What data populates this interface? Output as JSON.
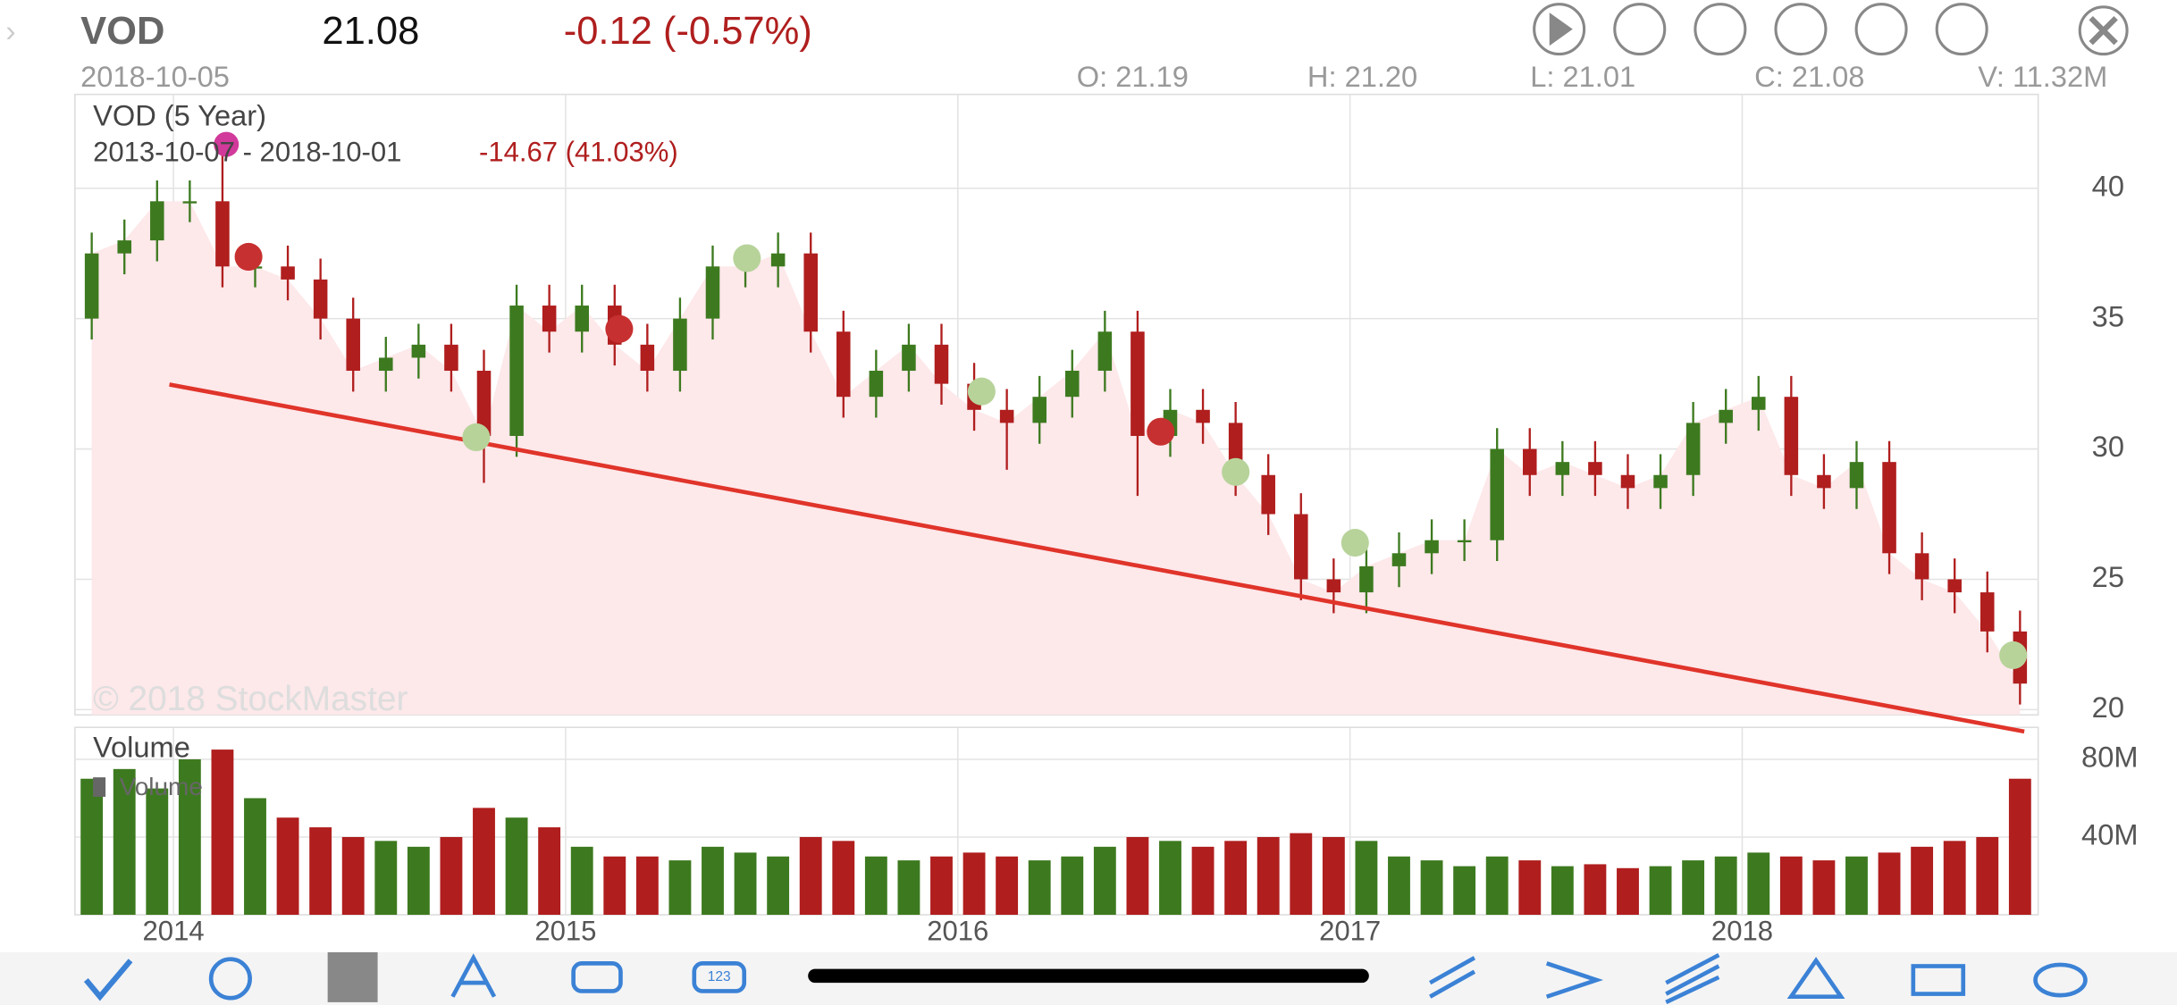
{
  "header": {
    "symbol": "VOD",
    "price": "21.08",
    "change": "-0.12 (-0.57%)",
    "date": "2018-10-05",
    "open": "O: 21.19",
    "high": "H: 21.20",
    "low": "L: 21.01",
    "close": "C: 21.08",
    "volume": "V: 11.32M"
  },
  "chart_data": {
    "type": "candlestick",
    "title": "VOD (5 Year)",
    "subtitle": "2013-10-07 - 2018-10-01",
    "subtitle_change": "-14.67 (41.03%)",
    "watermark": "© 2018 StockMaster",
    "categories": [
      null,
      null,
      null,
      "2014",
      null,
      null,
      null,
      null,
      null,
      null,
      null,
      null,
      null,
      null,
      null,
      "2015",
      null,
      null,
      null,
      null,
      null,
      null,
      null,
      null,
      null,
      null,
      null,
      "2016",
      null,
      null,
      null,
      null,
      null,
      null,
      null,
      null,
      null,
      null,
      null,
      "2017",
      null,
      null,
      null,
      null,
      null,
      null,
      null,
      null,
      null,
      null,
      null,
      "2018",
      null,
      null,
      null,
      null,
      null,
      null,
      null,
      null
    ],
    "open": [
      35,
      37.5,
      38,
      39.5,
      39.5,
      37,
      37,
      36.5,
      35,
      33,
      33.5,
      34,
      33,
      30.5,
      35.5,
      34.5,
      35.5,
      34,
      33,
      35,
      37,
      37,
      37.5,
      34.5,
      32,
      33,
      34,
      32.5,
      31.5,
      31,
      32,
      33,
      34.5,
      30.5,
      31.5,
      31,
      29,
      27.5,
      25,
      24.5,
      25.5,
      26,
      26.5,
      26.5,
      30,
      29,
      29.5,
      29,
      28.5,
      29,
      31,
      31.5,
      32,
      29,
      28.5,
      29.5,
      26,
      25,
      24.5,
      23
    ],
    "high": [
      38.3,
      38.8,
      40.3,
      40.3,
      41.5,
      37.8,
      37.8,
      37.3,
      35.8,
      34.3,
      34.8,
      34.8,
      33.8,
      36.3,
      36.3,
      36.3,
      36.3,
      34.8,
      35.8,
      37.8,
      37.8,
      38.3,
      38.3,
      35.3,
      33.8,
      34.8,
      34.8,
      33.3,
      32.3,
      32.8,
      33.8,
      35.3,
      35.3,
      32.3,
      32.3,
      31.8,
      29.8,
      28.3,
      25.8,
      26.3,
      26.8,
      27.3,
      27.3,
      30.8,
      30.8,
      30.3,
      30.3,
      29.8,
      29.8,
      31.8,
      32.3,
      32.8,
      32.8,
      29.8,
      30.3,
      30.3,
      26.8,
      25.8,
      25.3,
      23.8
    ],
    "low": [
      34.2,
      36.7,
      37.2,
      38.7,
      36.2,
      36.2,
      35.7,
      34.2,
      32.2,
      32.2,
      32.7,
      32.2,
      28.7,
      29.7,
      33.7,
      33.7,
      33.2,
      32.2,
      32.2,
      34.2,
      36.2,
      36.2,
      33.7,
      31.2,
      31.2,
      32.2,
      31.7,
      30.7,
      29.2,
      30.2,
      31.2,
      32.2,
      28.2,
      29.7,
      30.2,
      28.2,
      26.7,
      24.2,
      23.7,
      23.7,
      24.7,
      25.2,
      25.7,
      25.7,
      28.2,
      28.2,
      28.2,
      27.7,
      27.7,
      28.2,
      30.2,
      30.7,
      28.2,
      27.7,
      27.7,
      25.2,
      24.2,
      23.7,
      22.2,
      20.2
    ],
    "close": [
      37.5,
      38,
      39.5,
      39.5,
      37,
      37,
      36.5,
      35,
      33,
      33.5,
      34,
      33,
      30.5,
      35.5,
      34.5,
      35.5,
      34,
      33,
      35,
      37,
      37,
      37.5,
      34.5,
      32,
      33,
      34,
      32.5,
      31.5,
      31,
      32,
      33,
      34.5,
      30.5,
      31.5,
      31,
      29,
      27.5,
      25,
      24.5,
      25.5,
      26,
      26.5,
      26.5,
      30,
      29,
      29.5,
      29,
      28.5,
      29,
      31,
      31.5,
      32,
      29,
      28.5,
      29.5,
      26,
      25,
      24.5,
      23,
      21
    ],
    "up_color": "#3d7a1f",
    "down_color": "#b01e1e",
    "area_color": "#fde8ea",
    "ylim": [
      19.8,
      43.6
    ],
    "yticks": [
      20,
      25,
      30,
      35,
      40
    ],
    "grid": true,
    "volume": {
      "title": "Volume",
      "legend": "Volume",
      "ylim": [
        0,
        96
      ],
      "yticks": [
        {
          "value": 40,
          "label": "40M"
        },
        {
          "value": 80,
          "label": "80M"
        }
      ],
      "values": [
        70,
        75,
        65,
        80,
        85,
        60,
        50,
        45,
        40,
        38,
        35,
        40,
        55,
        50,
        45,
        35,
        30,
        30,
        28,
        35,
        32,
        30,
        40,
        38,
        30,
        28,
        30,
        32,
        30,
        28,
        30,
        35,
        40,
        38,
        35,
        38,
        40,
        42,
        40,
        38,
        30,
        28,
        25,
        30,
        28,
        25,
        26,
        24,
        25,
        28,
        30,
        32,
        30,
        28,
        30,
        32,
        35,
        38,
        40,
        70
      ]
    }
  },
  "toolbar": {
    "icon_label": "123"
  }
}
